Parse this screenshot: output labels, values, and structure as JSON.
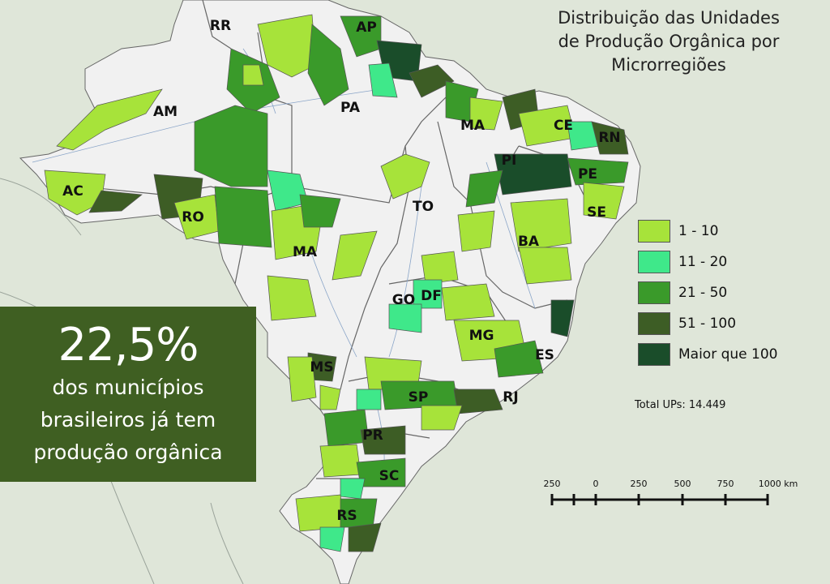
{
  "map": {
    "title_lines": [
      "Distribuição das Unidades",
      "de Produção Orgânica por",
      "Microrregiões"
    ],
    "state_labels": [
      "RR",
      "AP",
      "AM",
      "PA",
      "MA",
      "CE",
      "RN",
      "PI",
      "PE",
      "AC",
      "TO",
      "RO",
      "SE",
      "BA",
      "MA",
      "GO",
      "DF",
      "MG",
      "ES",
      "MS",
      "SP",
      "RJ",
      "PR",
      "SC",
      "RS"
    ],
    "legend": [
      {
        "label": "1 - 10",
        "color": "#a7e33a"
      },
      {
        "label": "11 - 20",
        "color": "#3fe88a"
      },
      {
        "label": "21 - 50",
        "color": "#3a9a2a"
      },
      {
        "label": "51 - 100",
        "color": "#3d5d25"
      },
      {
        "label": "Maior que 100",
        "color": "#1a4d2a"
      }
    ],
    "total": "Total UPs: 14.449",
    "scale_labels": [
      "250",
      "0",
      "250",
      "500",
      "750",
      "1000 km"
    ]
  },
  "stat": {
    "percent": "22,5%",
    "lines": [
      "dos municípios",
      "brasileiros já tem",
      "produção orgânica"
    ]
  },
  "colors": {
    "brazil_fill": "#f1f1f1",
    "neighbor_fill": "#dfe6d9",
    "box_bg": "#3f5f22"
  }
}
